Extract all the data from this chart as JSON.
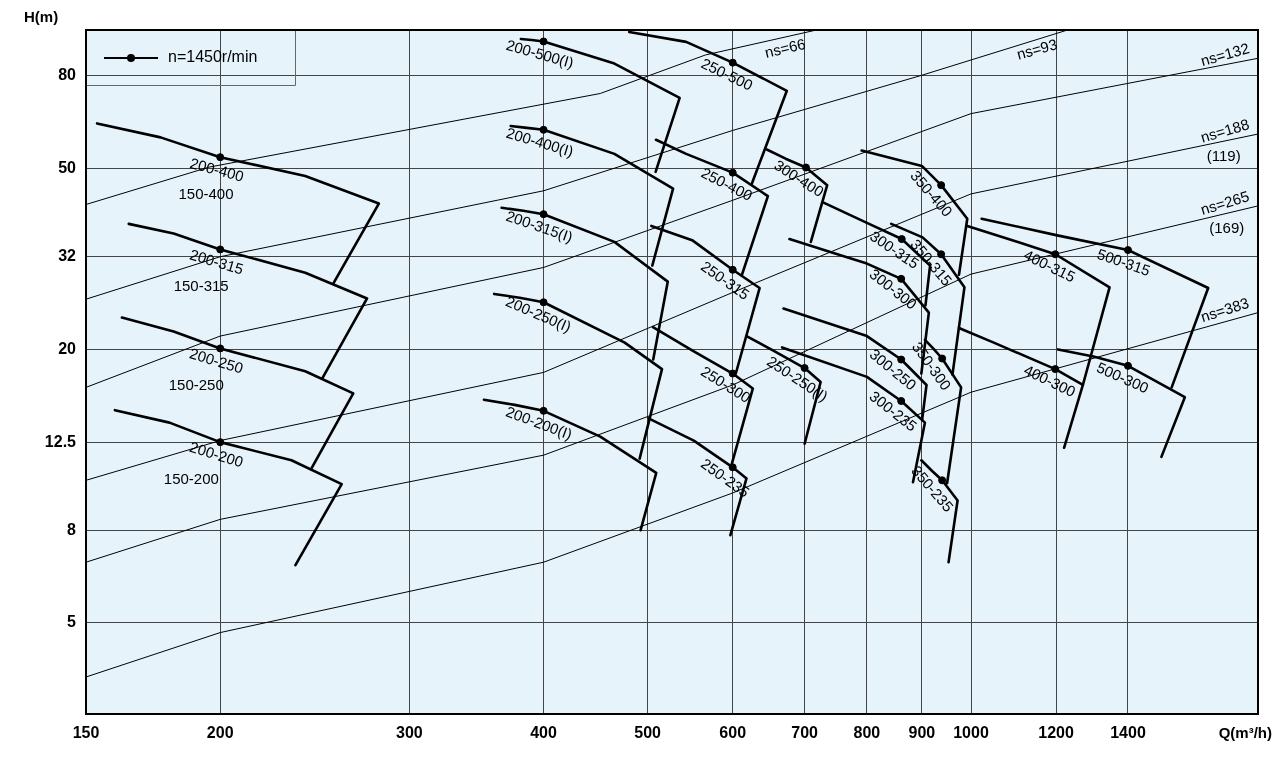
{
  "chart_data": {
    "type": "line",
    "xlabel": "Q(m³/h)",
    "ylabel": "H(m)",
    "log": "xy",
    "grid": true,
    "legend": "top left",
    "xlim": [
      150,
      1850
    ],
    "xticks": [
      150,
      200,
      300,
      400,
      500,
      600,
      700,
      800,
      900,
      1000,
      1200,
      1400
    ],
    "ylim": [
      3.15,
      101
    ],
    "yticks": [
      5,
      8,
      12.5,
      20,
      32,
      50,
      80
    ],
    "annotations": [
      {
        "text": "150-400",
        "x": 194,
        "y": 54.3
      },
      {
        "text": "150-315",
        "x": 192,
        "y": 34.3
      },
      {
        "text": "150-250",
        "x": 190,
        "y": 21.0
      },
      {
        "text": "150-200",
        "x": 188,
        "y": 13.2
      },
      {
        "text": "(119)",
        "x": 1719,
        "y": 57.5
      },
      {
        "text": "(169)",
        "x": 1730,
        "y": 39.9
      }
    ],
    "series": [
      {
        "name": "n=1450r/min",
        "type": "scatter",
        "marker": "circle",
        "color": "#000000",
        "x": [
          200,
          200,
          200,
          200,
          400,
          400,
          400,
          400,
          400,
          600,
          600,
          600,
          600,
          600,
          700,
          702,
          862,
          861,
          861,
          861,
          938,
          938,
          940,
          940,
          1198,
          1198,
          1400,
          1400
        ],
        "values": [
          53,
          33.2,
          20.1,
          12.5,
          95.3,
          60.9,
          39.7,
          25.4,
          14.65,
          85.6,
          49.0,
          29.95,
          17.7,
          11.0,
          18.2,
          50.3,
          35.0,
          28.6,
          19.0,
          15.4,
          46.0,
          32.4,
          19.1,
          10.3,
          32.4,
          18.1,
          33.1,
          18.4
        ]
      },
      {
        "name": "200-400",
        "color": "#000000",
        "x": [
          153.6,
          176,
          200,
          240,
          281,
          255
        ],
        "values": [
          62.9,
          58.6,
          53,
          48.2,
          41.9,
          28
        ]
      },
      {
        "name": "200-315",
        "color": "#000000",
        "x": [
          164.4,
          181,
          200,
          240,
          274,
          249
        ],
        "values": [
          37.8,
          36.0,
          33.2,
          29.5,
          25.9,
          17.3
        ]
      },
      {
        "name": "200-250",
        "color": "#000000",
        "x": [
          162,
          181,
          200,
          240,
          266,
          243
        ],
        "values": [
          23.5,
          21.9,
          20.1,
          17.9,
          16.0,
          10.9
        ]
      },
      {
        "name": "200-200",
        "color": "#000000",
        "x": [
          159.6,
          179.4,
          200,
          233,
          259.5,
          235
        ],
        "values": [
          14.7,
          13.8,
          12.5,
          11.4,
          10.1,
          6.7
        ]
      },
      {
        "name": "200-500(I)",
        "color": "#000000",
        "x": [
          381,
          390,
          400,
          465.6,
          535.5,
          508.6
        ],
        "values": [
          96.5,
          96,
          95.3,
          85.2,
          71.6,
          49.2
        ]
      },
      {
        "name": "200-400(I)",
        "color": "#000000",
        "x": [
          372.8,
          386,
          400,
          465.6,
          528,
          505
        ],
        "values": [
          62.1,
          61.5,
          60.9,
          53.9,
          45.2,
          30.6
        ]
      },
      {
        "name": "200-315(I)",
        "color": "#000000",
        "x": [
          365.6,
          383,
          400,
          465.6,
          522,
          506
        ],
        "values": [
          41.0,
          40.4,
          39.7,
          34.5,
          28.2,
          19.0
        ]
      },
      {
        "name": "200-250(I)",
        "color": "#000000",
        "x": [
          359.8,
          380,
          400,
          476,
          515.6,
          491.5
        ],
        "values": [
          26.5,
          26.0,
          25.4,
          20.7,
          18.1,
          11.5
        ]
      },
      {
        "name": "200-200(I)",
        "color": "#000000",
        "x": [
          352,
          376,
          400,
          451.7,
          509.3,
          492.5
        ],
        "values": [
          15.5,
          15.1,
          14.65,
          12.85,
          10.7,
          8.0
        ]
      },
      {
        "name": "250-500",
        "color": "#000000",
        "x": [
          480.6,
          543,
          600,
          673.8,
          624.8
        ],
        "values": [
          100,
          95.1,
          85.6,
          74.2,
          46.2
        ]
      },
      {
        "name": "250-400",
        "color": "#000000",
        "x": [
          509,
          543,
          600,
          647,
          612
        ],
        "values": [
          57.9,
          53.9,
          49.0,
          43.5,
          29.2
        ]
      },
      {
        "name": "250-315",
        "color": "#000000",
        "x": [
          504,
          550,
          600,
          635.6,
          604
        ],
        "values": [
          37.4,
          34.8,
          29.95,
          27.3,
          17.7
        ]
      },
      {
        "name": "250-300",
        "color": "#000000",
        "x": [
          505.7,
          552,
          600,
          626.4,
          598.6
        ],
        "values": [
          22.4,
          19.8,
          17.7,
          16.4,
          11.15
        ]
      },
      {
        "name": "250-235",
        "color": "#000000",
        "x": [
          501,
          552,
          600,
          618,
          597
        ],
        "values": [
          14.1,
          12.6,
          11.0,
          10.4,
          7.8
        ]
      },
      {
        "name": "250-250(I)",
        "color": "#000000",
        "x": [
          618,
          654,
          700,
          724.4,
          700
        ],
        "values": [
          21.4,
          19.9,
          18.2,
          16.95,
          12.4
        ]
      },
      {
        "name": "300-400",
        "color": "#000000",
        "x": [
          645.5,
          672,
          702,
          734.7,
          709.4
        ],
        "values": [
          55.1,
          52.6,
          50.3,
          46.0,
          34.5
        ]
      },
      {
        "name": "300-315",
        "color": "#000000",
        "x": [
          729,
          800,
          862,
          916,
          907
        ],
        "values": [
          42.1,
          38.0,
          35.0,
          30.6,
          25.0
        ]
      },
      {
        "name": "300-300",
        "color": "#000000",
        "x": [
          677.6,
          800,
          861,
          913.6,
          899
        ],
        "values": [
          35.0,
          30.9,
          28.6,
          24.1,
          17.7
        ]
      },
      {
        "name": "300-250",
        "color": "#000000",
        "x": [
          669,
          800,
          861,
          909,
          900.5
        ],
        "values": [
          24.6,
          21.4,
          19.0,
          16.7,
          14.0
        ]
      },
      {
        "name": "300-235",
        "color": "#000000",
        "x": [
          667,
          800,
          861,
          906,
          883
        ],
        "values": [
          20.2,
          17.4,
          15.4,
          13.8,
          10.2
        ]
      },
      {
        "name": "350-400",
        "color": "#000000",
        "x": [
          791,
          900,
          938,
          992,
          974.5
        ],
        "values": [
          54.8,
          50.7,
          46.0,
          38.8,
          29.2
        ]
      },
      {
        "name": "350-315",
        "color": "#000000",
        "x": [
          842.8,
          901.4,
          938,
          986,
          961
        ],
        "values": [
          37.8,
          35.3,
          32.4,
          27.4,
          17.6
        ]
      },
      {
        "name": "350-300",
        "color": "#000000",
        "x": [
          906,
          922,
          940,
          979,
          950
        ],
        "values": [
          21.0,
          20.1,
          19.1,
          16.5,
          10.15
        ]
      },
      {
        "name": "350-235",
        "color": "#000000",
        "x": [
          899,
          920,
          940,
          971.6,
          953
        ],
        "values": [
          11.4,
          10.8,
          10.3,
          9.3,
          6.8
        ]
      },
      {
        "name": "400-315",
        "color": "#000000",
        "x": [
          992,
          1100,
          1198,
          1345.8,
          1271
        ],
        "values": [
          37.4,
          34.6,
          32.4,
          27.4,
          16.7
        ]
      },
      {
        "name": "400-300",
        "color": "#000000",
        "x": [
          974.5,
          1050,
          1198,
          1271,
          1221
        ],
        "values": [
          22.3,
          20.7,
          18.1,
          16.7,
          12.15
        ]
      },
      {
        "name": "500-315",
        "color": "#000000",
        "x": [
          1023,
          1200,
          1400,
          1662.6,
          1537.5
        ],
        "values": [
          38.8,
          35.7,
          33.1,
          27.3,
          16.5
        ]
      },
      {
        "name": "500-300",
        "color": "#000000",
        "x": [
          1205,
          1300,
          1400,
          1581.5,
          1504
        ],
        "values": [
          20.0,
          19.3,
          18.4,
          15.7,
          11.6
        ]
      },
      {
        "name": "ns=66",
        "color": "#000000",
        "x": [
          150,
          195.3,
          451.7,
          566,
          718
        ],
        "values": [
          41.7,
          50.4,
          73.2,
          89,
          101
        ]
      },
      {
        "name": "ns=93",
        "color": "#000000",
        "x": [
          150,
          200,
          400,
          600,
          900,
          1230
        ],
        "values": [
          25.8,
          32.0,
          44.7,
          60.7,
          80.3,
          101
        ]
      },
      {
        "name": "ns=132",
        "color": "#000000",
        "x": [
          150,
          200,
          400,
          600,
          1000,
          1850
        ],
        "values": [
          16.5,
          21.4,
          30.3,
          42.6,
          66.1,
          87.5
        ]
      },
      {
        "name": "ns=188",
        "color": "#000000",
        "x": [
          150,
          200,
          400,
          600,
          1000,
          1850
        ],
        "values": [
          10.3,
          12.6,
          17.8,
          26.7,
          44.0,
          59.6
        ]
      },
      {
        "name": "ns=265",
        "color": "#000000",
        "x": [
          150,
          200,
          400,
          600,
          1000,
          1850
        ],
        "values": [
          6.8,
          8.45,
          11.7,
          16.7,
          29.3,
          41.4
        ]
      },
      {
        "name": "ns=383",
        "color": "#000000",
        "x": [
          150,
          200,
          400,
          600,
          1000,
          1850
        ],
        "values": [
          3.8,
          4.76,
          6.8,
          9.66,
          16.1,
          24.1
        ]
      }
    ]
  }
}
